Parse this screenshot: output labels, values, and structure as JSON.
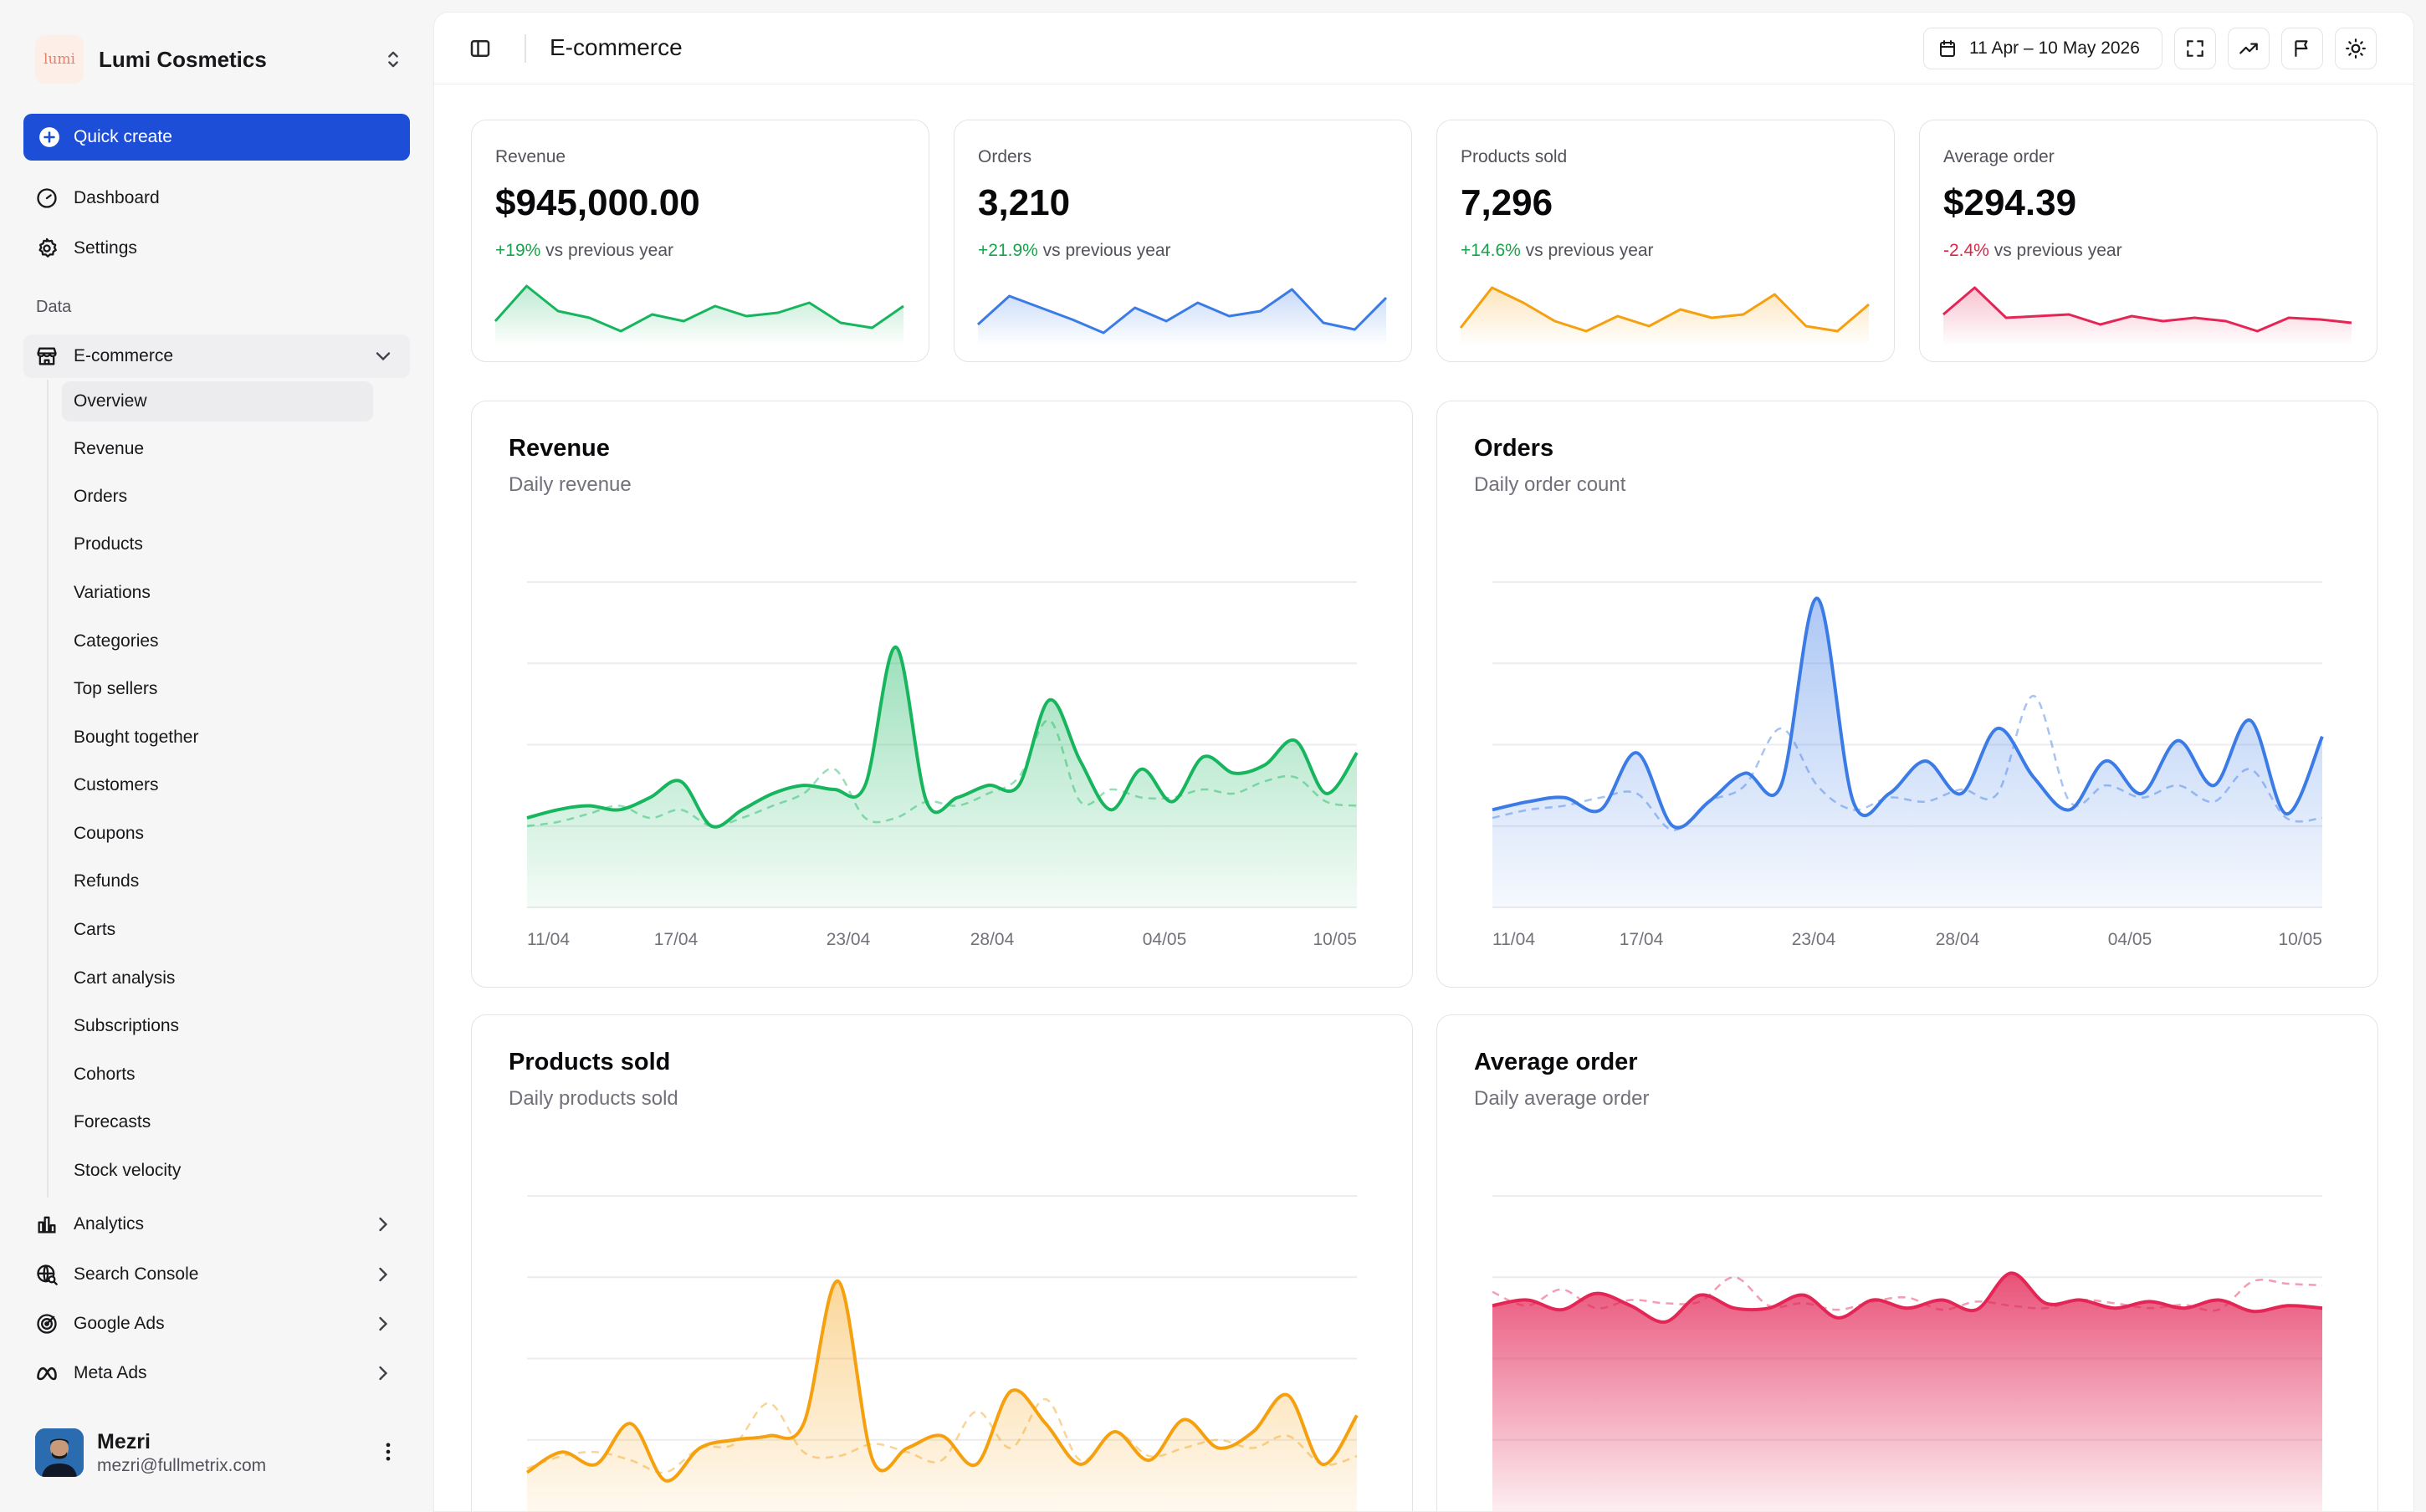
{
  "brand": {
    "logo_text": "lumi",
    "name": "Lumi Cosmetics"
  },
  "sidebar": {
    "quick_create": "Quick create",
    "top_items": [
      {
        "label": "Dashboard",
        "icon": "gauge-icon"
      },
      {
        "label": "Settings",
        "icon": "gear-icon"
      }
    ],
    "section_label": "Data",
    "ecommerce": {
      "label": "E-commerce",
      "items": [
        "Overview",
        "Revenue",
        "Orders",
        "Products",
        "Variations",
        "Categories",
        "Top sellers",
        "Bought together",
        "Customers",
        "Coupons",
        "Refunds",
        "Carts",
        "Cart analysis",
        "Subscriptions",
        "Cohorts",
        "Forecasts",
        "Stock velocity"
      ],
      "active": "Overview"
    },
    "groups": [
      {
        "label": "Analytics",
        "icon": "bar-chart-icon"
      },
      {
        "label": "Search Console",
        "icon": "globe-search-icon"
      },
      {
        "label": "Google Ads",
        "icon": "target-icon"
      },
      {
        "label": "Meta Ads",
        "icon": "meta-icon"
      }
    ]
  },
  "user": {
    "name": "Mezri",
    "email": "mezri@fullmetrix.com"
  },
  "topbar": {
    "title": "E-commerce",
    "date_range": "11 Apr – 10 May 2026"
  },
  "colors": {
    "green": "#16b55e",
    "blue": "#3b7be6",
    "orange": "#f5a00f",
    "red": "#e32656",
    "primary": "#1d4ed8"
  },
  "kpis": [
    {
      "label": "Revenue",
      "value": "$945,000.00",
      "delta": "+19%",
      "delta_dir": "up",
      "suffix": "vs previous year",
      "color": "#16b55e",
      "spark": [
        30,
        72,
        42,
        34,
        18,
        38,
        30,
        48,
        36,
        40,
        52,
        28,
        22,
        48
      ]
    },
    {
      "label": "Orders",
      "value": "3,210",
      "delta": "+21.9%",
      "delta_dir": "up",
      "suffix": "vs previous year",
      "color": "#3b7be6",
      "spark": [
        26,
        60,
        46,
        32,
        16,
        46,
        30,
        52,
        36,
        42,
        68,
        28,
        20,
        58
      ]
    },
    {
      "label": "Products sold",
      "value": "7,296",
      "delta": "+14.6%",
      "delta_dir": "up",
      "suffix": "vs previous year",
      "color": "#f5a00f",
      "spark": [
        22,
        70,
        52,
        30,
        18,
        36,
        24,
        44,
        34,
        38,
        62,
        24,
        18,
        50
      ]
    },
    {
      "label": "Average order",
      "value": "$294.39",
      "delta": "-2.4%",
      "delta_dir": "down",
      "suffix": "vs previous year",
      "color": "#e32656",
      "spark": [
        38,
        70,
        34,
        36,
        38,
        26,
        36,
        30,
        34,
        30,
        18,
        34,
        32,
        28
      ]
    }
  ],
  "charts": [
    {
      "title": "Revenue",
      "subtitle": "Daily revenue",
      "color": "#16b55e",
      "x_ticks": [
        "11/04",
        "17/04",
        "23/04",
        "28/04",
        "04/05",
        "10/05"
      ],
      "current": [
        1.1,
        1.2,
        1.25,
        1.2,
        1.35,
        1.55,
        1.0,
        1.2,
        1.4,
        1.5,
        1.45,
        1.5,
        3.2,
        1.3,
        1.35,
        1.5,
        1.5,
        2.55,
        1.8,
        1.2,
        1.7,
        1.3,
        1.85,
        1.65,
        1.75,
        2.05,
        1.4,
        1.9
      ],
      "previous": [
        1.0,
        1.05,
        1.15,
        1.25,
        1.1,
        1.2,
        1.0,
        1.1,
        1.25,
        1.4,
        1.7,
        1.1,
        1.1,
        1.3,
        1.25,
        1.4,
        1.6,
        2.3,
        1.3,
        1.45,
        1.35,
        1.35,
        1.45,
        1.4,
        1.55,
        1.6,
        1.3,
        1.25
      ]
    },
    {
      "title": "Orders",
      "subtitle": "Daily order count",
      "color": "#3b7be6",
      "x_ticks": [
        "11/04",
        "17/04",
        "23/04",
        "28/04",
        "04/05",
        "10/05"
      ],
      "current": [
        1.2,
        1.3,
        1.35,
        1.2,
        1.9,
        1.0,
        1.3,
        1.65,
        1.5,
        3.8,
        1.3,
        1.4,
        1.8,
        1.4,
        2.2,
        1.6,
        1.2,
        1.8,
        1.4,
        2.05,
        1.5,
        2.3,
        1.15,
        2.1
      ],
      "previous": [
        1.1,
        1.2,
        1.25,
        1.35,
        1.4,
        0.95,
        1.3,
        1.5,
        2.2,
        1.5,
        1.2,
        1.35,
        1.3,
        1.45,
        1.4,
        2.6,
        1.3,
        1.5,
        1.35,
        1.5,
        1.3,
        1.7,
        1.1,
        1.1
      ]
    },
    {
      "title": "Products sold",
      "subtitle": "Daily products sold",
      "color": "#f5a00f",
      "x_ticks": [
        "11/04",
        "17/04",
        "23/04",
        "28/04",
        "04/05",
        "10/05"
      ],
      "current": [
        0.6,
        0.85,
        0.7,
        1.2,
        0.5,
        0.9,
        1.0,
        1.05,
        1.2,
        2.95,
        0.75,
        0.9,
        1.05,
        0.7,
        1.6,
        1.2,
        0.7,
        1.1,
        0.75,
        1.25,
        0.9,
        1.1,
        1.55,
        0.7,
        1.3
      ],
      "previous": [
        0.65,
        0.8,
        0.85,
        0.75,
        0.6,
        0.9,
        0.95,
        1.45,
        0.85,
        0.8,
        0.95,
        0.85,
        0.75,
        1.35,
        0.9,
        1.5,
        0.75,
        1.1,
        0.8,
        0.9,
        1.0,
        0.9,
        1.05,
        0.7,
        0.8
      ]
    },
    {
      "title": "Average order",
      "subtitle": "Daily average order",
      "color": "#e32656",
      "x_ticks": [
        "11/04",
        "17/04",
        "23/04",
        "28/04",
        "04/05",
        "10/05"
      ],
      "current": [
        2.65,
        2.72,
        2.6,
        2.8,
        2.65,
        2.45,
        2.78,
        2.62,
        2.62,
        2.78,
        2.5,
        2.72,
        2.62,
        2.72,
        2.6,
        3.05,
        2.68,
        2.72,
        2.62,
        2.7,
        2.62,
        2.72,
        2.58,
        2.65,
        2.62
      ],
      "previous": [
        2.82,
        2.65,
        2.85,
        2.62,
        2.72,
        2.68,
        2.7,
        3.0,
        2.65,
        2.68,
        2.6,
        2.7,
        2.75,
        2.6,
        2.7,
        2.65,
        2.62,
        2.72,
        2.68,
        2.62,
        2.66,
        2.6,
        2.95,
        2.92,
        2.9
      ]
    }
  ]
}
